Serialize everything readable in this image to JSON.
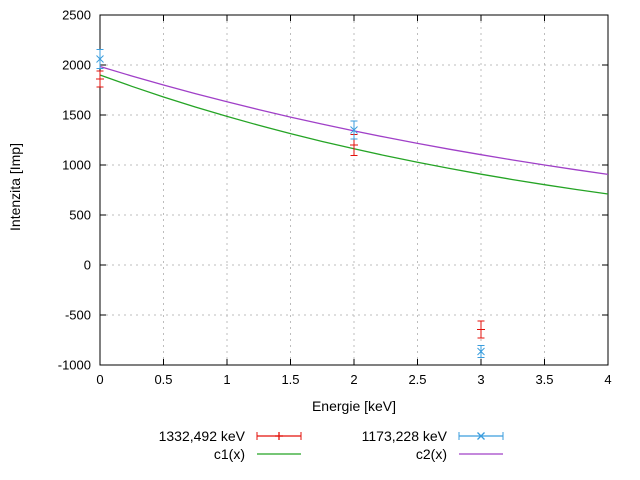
{
  "chart_data": {
    "type": "line",
    "title": "",
    "xlabel": "Energie [keV]",
    "ylabel": "Intenzita [Imp]",
    "xlim": [
      0,
      4
    ],
    "ylim": [
      -1000,
      2500
    ],
    "xticks": [
      0,
      0.5,
      1,
      1.5,
      2,
      2.5,
      3,
      3.5,
      4
    ],
    "yticks": [
      -1000,
      -500,
      0,
      500,
      1000,
      1500,
      2000,
      2500
    ],
    "grid": true,
    "legend_position": "below",
    "colors": {
      "red": "#e3120b",
      "blue": "#3b9ddd",
      "green": "#25a425",
      "purple": "#a040c8"
    },
    "series": [
      {
        "name": "1332,492 keV",
        "kind": "points-errorbars",
        "marker": "plus",
        "color": "#e3120b",
        "points": [
          {
            "x": 0,
            "y": 1860,
            "err": 80
          },
          {
            "x": 2,
            "y": 1200,
            "err": 105
          },
          {
            "x": 3,
            "y": -645,
            "err": 85
          }
        ]
      },
      {
        "name": "1173,228 keV",
        "kind": "points-errorbars",
        "marker": "x",
        "color": "#3b9ddd",
        "points": [
          {
            "x": 0,
            "y": 2060,
            "err": 95
          },
          {
            "x": 2,
            "y": 1350,
            "err": 90
          },
          {
            "x": 3,
            "y": -865,
            "err": 60
          }
        ]
      },
      {
        "name": "c1(x)",
        "kind": "line",
        "color": "#25a425",
        "x": [
          0,
          0.25,
          0.5,
          0.75,
          1,
          1.25,
          1.5,
          1.75,
          2,
          2.25,
          2.5,
          2.75,
          3,
          3.25,
          3.5,
          3.75,
          4
        ],
        "y": [
          1900,
          1787,
          1680,
          1580,
          1486,
          1397,
          1314,
          1235,
          1162,
          1092,
          1027,
          966,
          908,
          854,
          803,
          755,
          710
        ]
      },
      {
        "name": "c2(x)",
        "kind": "line",
        "color": "#a040c8",
        "x": [
          0,
          0.25,
          0.5,
          0.75,
          1,
          1.25,
          1.5,
          1.75,
          2,
          2.25,
          2.5,
          2.75,
          3,
          3.25,
          3.5,
          3.75,
          4
        ],
        "y": [
          1985,
          1890,
          1800,
          1714,
          1632,
          1554,
          1479,
          1409,
          1341,
          1277,
          1216,
          1158,
          1103,
          1050,
          1000,
          952,
          906
        ]
      }
    ]
  }
}
